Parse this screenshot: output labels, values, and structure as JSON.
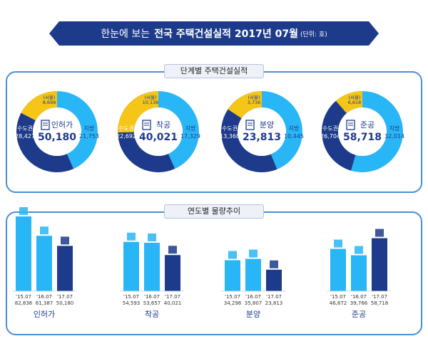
{
  "header": {
    "title_light": "한눈에 보는",
    "title_bold": "전국 주택건설실적 2017년 07월",
    "unit": "(단위: 호)"
  },
  "section1": {
    "title": "단계별 주택건설실적"
  },
  "section2": {
    "title": "연도별 물량추이"
  },
  "colors": {
    "navy": "#1d3b8a",
    "sky": "#29b6f6",
    "yellow": "#f5c518",
    "border": "#4a8fd6"
  },
  "chart_data": [
    {
      "type": "pie",
      "title": "인허가",
      "total": "50,180",
      "slices": [
        {
          "label": "수도권",
          "value": 28427,
          "text": "28,427",
          "color": "#1d3b8a"
        },
        {
          "label": "지방",
          "value": 21753,
          "text": "21,753",
          "color": "#29b6f6"
        },
        {
          "label": "(서울)",
          "value": 8699,
          "text": "8,699",
          "color": "#f5c518"
        }
      ]
    },
    {
      "type": "pie",
      "title": "착공",
      "total": "40,021",
      "slices": [
        {
          "label": "수도권",
          "value": 22692,
          "text": "22,692",
          "color": "#1d3b8a"
        },
        {
          "label": "지방",
          "value": 17329,
          "text": "17,329",
          "color": "#29b6f6"
        },
        {
          "label": "(서울)",
          "value": 10136,
          "text": "10,136",
          "color": "#f5c518"
        }
      ]
    },
    {
      "type": "pie",
      "title": "분양",
      "total": "23,813",
      "slices": [
        {
          "label": "수도권",
          "value": 13368,
          "text": "13,368",
          "color": "#1d3b8a"
        },
        {
          "label": "지방",
          "value": 10445,
          "text": "10,445",
          "color": "#29b6f6"
        },
        {
          "label": "(서울)",
          "value": 3736,
          "text": "3,736",
          "color": "#f5c518"
        }
      ]
    },
    {
      "type": "pie",
      "title": "준공",
      "total": "58,718",
      "slices": [
        {
          "label": "수도권",
          "value": 26704,
          "text": "26,704",
          "color": "#1d3b8a"
        },
        {
          "label": "지방",
          "value": 32014,
          "text": "32,014",
          "color": "#29b6f6"
        },
        {
          "label": "(서울)",
          "value": 6618,
          "text": "6,618",
          "color": "#f5c518"
        }
      ]
    },
    {
      "type": "bar",
      "title": "인허가",
      "categories": [
        "'15.07",
        "'16.07",
        "'17.07"
      ],
      "values": [
        82836,
        61387,
        50180
      ],
      "labels": [
        "82,836",
        "61,387",
        "50,180"
      ],
      "colors": [
        "#29b6f6",
        "#29b6f6",
        "#1d3b8a"
      ]
    },
    {
      "type": "bar",
      "title": "착공",
      "categories": [
        "'15.07",
        "'16.07",
        "'17.07"
      ],
      "values": [
        54593,
        53657,
        40021
      ],
      "labels": [
        "54,593",
        "53,657",
        "40,021"
      ],
      "colors": [
        "#29b6f6",
        "#29b6f6",
        "#1d3b8a"
      ]
    },
    {
      "type": "bar",
      "title": "분양",
      "categories": [
        "'15.07",
        "'16.07",
        "'17.07"
      ],
      "values": [
        34298,
        35807,
        23813
      ],
      "labels": [
        "34,298",
        "35,807",
        "23,813"
      ],
      "colors": [
        "#29b6f6",
        "#29b6f6",
        "#1d3b8a"
      ]
    },
    {
      "type": "bar",
      "title": "준공",
      "categories": [
        "'15.07",
        "'16.07",
        "'17.07"
      ],
      "values": [
        46872,
        39766,
        58718
      ],
      "labels": [
        "46,872",
        "39,766",
        "58,718"
      ],
      "colors": [
        "#29b6f6",
        "#29b6f6",
        "#1d3b8a"
      ]
    }
  ]
}
